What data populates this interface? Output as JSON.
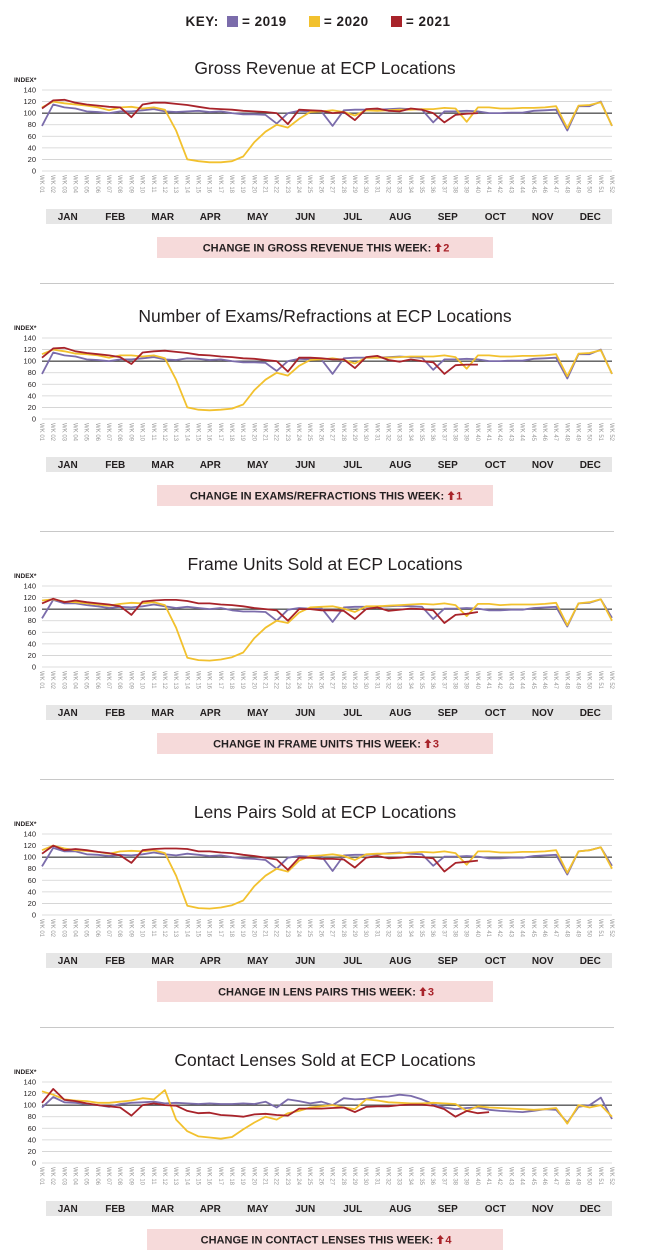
{
  "legend": {
    "title": "KEY:",
    "items": [
      {
        "label": "= 2019",
        "color": "#7b6cab"
      },
      {
        "label": "= 2020",
        "color": "#f2c12e"
      },
      {
        "label": "= 2021",
        "color": "#a8232a"
      }
    ]
  },
  "months": [
    "JAN",
    "FEB",
    "MAR",
    "APR",
    "MAY",
    "JUN",
    "JUL",
    "AUG",
    "SEP",
    "OCT",
    "NOV",
    "DEC"
  ],
  "week_labels": [
    "WK 01",
    "WK 02",
    "WK 03",
    "WK 04",
    "WK 05",
    "WK 06",
    "WK 07",
    "WK 08",
    "WK 09",
    "WK 10",
    "WK 11",
    "WK 12",
    "WK 13",
    "WK 14",
    "WK 15",
    "WK 16",
    "WK 17",
    "WK 18",
    "WK 19",
    "WK 20",
    "WK 21",
    "WK 22",
    "WK 23",
    "WK 24",
    "WK 25",
    "WK 26",
    "WK 27",
    "WK 28",
    "WK 29",
    "WK 30",
    "WK 31",
    "WK 32",
    "WK 33",
    "WK 34",
    "WK 35",
    "WK 36",
    "WK 37",
    "WK 38",
    "WK 39",
    "WK 40",
    "WK 41",
    "WK 42",
    "WK 43",
    "WK 44",
    "WK 45",
    "WK 46",
    "WK 47",
    "WK 48",
    "WK 49",
    "WK 50",
    "WK 51",
    "WK 52"
  ],
  "chart_data": [
    {
      "type": "line",
      "title": "Gross Revenue at ECP Locations",
      "ylabel": "INDEX*",
      "ylim": [
        0,
        140
      ],
      "yticks": [
        0,
        20,
        40,
        60,
        80,
        100,
        120,
        140
      ],
      "series": [
        {
          "name": "2019",
          "values": [
            78,
            115,
            110,
            108,
            103,
            102,
            100,
            103,
            103,
            105,
            107,
            103,
            102,
            103,
            104,
            102,
            103,
            100,
            98,
            98,
            97,
            82,
            100,
            104,
            103,
            103,
            78,
            105,
            106,
            106,
            106,
            107,
            108,
            107,
            106,
            84,
            103,
            103,
            104,
            103,
            100,
            100,
            101,
            101,
            104,
            105,
            106,
            70,
            112,
            112,
            120,
            78
          ]
        },
        {
          "name": "2020",
          "values": [
            110,
            120,
            117,
            115,
            113,
            110,
            105,
            110,
            111,
            108,
            110,
            106,
            70,
            20,
            17,
            15,
            15,
            17,
            25,
            50,
            68,
            80,
            75,
            90,
            102,
            103,
            105,
            102,
            96,
            105,
            104,
            105,
            106,
            106,
            107,
            107,
            109,
            108,
            85,
            110,
            110,
            108,
            108,
            109,
            109,
            110,
            112,
            74,
            113,
            114,
            119,
            78
          ]
        },
        {
          "name": "2021",
          "values": [
            108,
            122,
            123,
            118,
            115,
            113,
            111,
            110,
            93,
            115,
            118,
            118,
            116,
            114,
            111,
            108,
            107,
            106,
            104,
            103,
            102,
            100,
            81,
            106,
            105,
            104,
            100,
            102,
            88,
            107,
            108,
            104,
            103,
            108,
            106,
            100,
            84,
            97,
            99,
            100
          ]
        }
      ],
      "footer_text": "CHANGE IN GROSS REVENUE THIS WEEK:",
      "change_value": "2"
    },
    {
      "type": "line",
      "title": "Number of Exams/Refractions at ECP Locations",
      "ylabel": "INDEX*",
      "ylim": [
        0,
        140
      ],
      "yticks": [
        0,
        20,
        40,
        60,
        80,
        100,
        120,
        140
      ],
      "series": [
        {
          "name": "2019",
          "values": [
            78,
            115,
            110,
            108,
            103,
            102,
            100,
            103,
            103,
            105,
            107,
            103,
            102,
            105,
            104,
            102,
            103,
            100,
            98,
            98,
            97,
            83,
            100,
            104,
            103,
            103,
            78,
            105,
            106,
            106,
            106,
            107,
            108,
            107,
            106,
            85,
            103,
            103,
            104,
            103,
            100,
            100,
            101,
            101,
            104,
            105,
            106,
            70,
            112,
            112,
            120,
            78
          ]
        },
        {
          "name": "2020",
          "values": [
            112,
            120,
            117,
            113,
            112,
            110,
            106,
            110,
            110,
            108,
            110,
            105,
            68,
            20,
            16,
            15,
            16,
            18,
            25,
            50,
            68,
            80,
            75,
            92,
            102,
            103,
            105,
            102,
            96,
            106,
            106,
            106,
            107,
            108,
            108,
            108,
            110,
            107,
            87,
            110,
            110,
            108,
            108,
            109,
            109,
            110,
            112,
            74,
            113,
            114,
            119,
            78
          ]
        },
        {
          "name": "2021",
          "values": [
            106,
            122,
            123,
            117,
            114,
            112,
            110,
            107,
            95,
            115,
            117,
            118,
            116,
            114,
            111,
            110,
            108,
            107,
            105,
            104,
            102,
            100,
            82,
            106,
            106,
            105,
            103,
            103,
            88,
            107,
            109,
            102,
            99,
            103,
            100,
            98,
            78,
            93,
            94,
            94
          ]
        }
      ],
      "footer_text": "CHANGE IN EXAMS/REFRACTIONS THIS WEEK:",
      "change_value": "1"
    },
    {
      "type": "line",
      "title": "Frame Units Sold at ECP Locations",
      "ylabel": "INDEX*",
      "ylim": [
        0,
        140
      ],
      "yticks": [
        0,
        20,
        40,
        60,
        80,
        100,
        120,
        140
      ],
      "series": [
        {
          "name": "2019",
          "values": [
            84,
            116,
            110,
            110,
            107,
            105,
            102,
            104,
            103,
            105,
            108,
            105,
            102,
            104,
            102,
            100,
            102,
            98,
            96,
            96,
            95,
            80,
            99,
            102,
            101,
            102,
            78,
            103,
            104,
            104,
            104,
            105,
            106,
            105,
            104,
            83,
            101,
            101,
            102,
            101,
            98,
            98,
            99,
            99,
            102,
            103,
            104,
            70,
            110,
            111,
            117,
            85
          ]
        },
        {
          "name": "2020",
          "values": [
            115,
            117,
            113,
            112,
            110,
            108,
            106,
            109,
            111,
            110,
            112,
            107,
            68,
            16,
            12,
            11,
            13,
            17,
            25,
            50,
            68,
            80,
            76,
            94,
            103,
            104,
            105,
            101,
            95,
            105,
            105,
            106,
            107,
            108,
            109,
            108,
            110,
            107,
            88,
            109,
            109,
            107,
            108,
            108,
            108,
            109,
            111,
            72,
            110,
            112,
            117,
            80
          ]
        },
        {
          "name": "2021",
          "values": [
            110,
            118,
            112,
            115,
            112,
            110,
            108,
            105,
            90,
            113,
            115,
            116,
            116,
            114,
            110,
            110,
            108,
            107,
            105,
            102,
            100,
            98,
            80,
            100,
            100,
            98,
            98,
            97,
            83,
            100,
            103,
            97,
            99,
            101,
            100,
            98,
            76,
            90,
            92,
            95
          ]
        }
      ],
      "footer_text": "CHANGE IN FRAME UNITS THIS WEEK:",
      "change_value": "3"
    },
    {
      "type": "line",
      "title": "Lens Pairs Sold at ECP Locations",
      "ylabel": "INDEX*",
      "ylim": [
        0,
        140
      ],
      "yticks": [
        0,
        20,
        40,
        60,
        80,
        100,
        120,
        140
      ],
      "series": [
        {
          "name": "2019",
          "values": [
            84,
            116,
            110,
            110,
            105,
            104,
            102,
            104,
            103,
            105,
            108,
            105,
            103,
            106,
            104,
            102,
            103,
            100,
            98,
            97,
            95,
            80,
            99,
            102,
            101,
            102,
            76,
            103,
            104,
            104,
            105,
            107,
            108,
            106,
            105,
            85,
            101,
            101,
            102,
            101,
            98,
            98,
            99,
            99,
            102,
            103,
            104,
            70,
            110,
            112,
            117,
            85
          ]
        },
        {
          "name": "2020",
          "values": [
            112,
            120,
            115,
            112,
            111,
            109,
            106,
            110,
            111,
            110,
            112,
            107,
            68,
            16,
            12,
            11,
            13,
            17,
            25,
            50,
            68,
            80,
            75,
            94,
            102,
            103,
            105,
            102,
            95,
            105,
            106,
            106,
            107,
            108,
            109,
            108,
            110,
            107,
            87,
            110,
            110,
            108,
            108,
            109,
            109,
            110,
            112,
            73,
            110,
            112,
            117,
            80
          ]
        },
        {
          "name": "2021",
          "values": [
            106,
            120,
            112,
            114,
            112,
            109,
            107,
            103,
            90,
            112,
            114,
            115,
            115,
            114,
            110,
            110,
            108,
            107,
            104,
            102,
            99,
            96,
            78,
            99,
            99,
            97,
            97,
            96,
            82,
            99,
            102,
            98,
            99,
            101,
            100,
            98,
            75,
            90,
            92,
            94
          ]
        }
      ],
      "footer_text": "CHANGE IN LENS PAIRS THIS WEEK:",
      "change_value": "3"
    },
    {
      "type": "line",
      "title": "Contact Lenses Sold at ECP Locations",
      "ylabel": "INDEX*",
      "ylim": [
        0,
        140
      ],
      "yticks": [
        0,
        20,
        40,
        60,
        80,
        100,
        120,
        140
      ],
      "series": [
        {
          "name": "2019",
          "values": [
            96,
            114,
            105,
            104,
            102,
            100,
            97,
            102,
            104,
            105,
            106,
            103,
            104,
            103,
            102,
            103,
            102,
            102,
            103,
            102,
            106,
            96,
            110,
            107,
            103,
            106,
            100,
            112,
            110,
            111,
            114,
            115,
            118,
            116,
            110,
            102,
            96,
            93,
            95,
            96,
            92,
            90,
            89,
            88,
            90,
            93,
            92,
            70,
            97,
            100,
            113,
            76
          ]
        },
        {
          "name": "2020",
          "values": [
            124,
            118,
            110,
            108,
            107,
            104,
            104,
            106,
            108,
            112,
            110,
            126,
            75,
            55,
            46,
            44,
            42,
            45,
            58,
            70,
            80,
            75,
            86,
            90,
            96,
            98,
            100,
            96,
            93,
            110,
            108,
            105,
            104,
            103,
            103,
            104,
            103,
            102,
            90,
            98,
            96,
            95,
            94,
            93,
            92,
            93,
            95,
            68,
            100,
            96,
            100,
            80
          ]
        },
        {
          "name": "2021",
          "values": [
            104,
            128,
            109,
            107,
            103,
            100,
            98,
            96,
            82,
            100,
            103,
            100,
            99,
            90,
            86,
            87,
            83,
            82,
            80,
            84,
            85,
            83,
            82,
            94,
            94,
            94,
            95,
            96,
            88,
            97,
            98,
            98,
            100,
            101,
            101,
            99,
            93,
            80,
            90,
            86,
            88
          ]
        }
      ],
      "footer_text": "CHANGE IN CONTACT LENSES THIS WEEK:",
      "change_value": "4"
    }
  ]
}
